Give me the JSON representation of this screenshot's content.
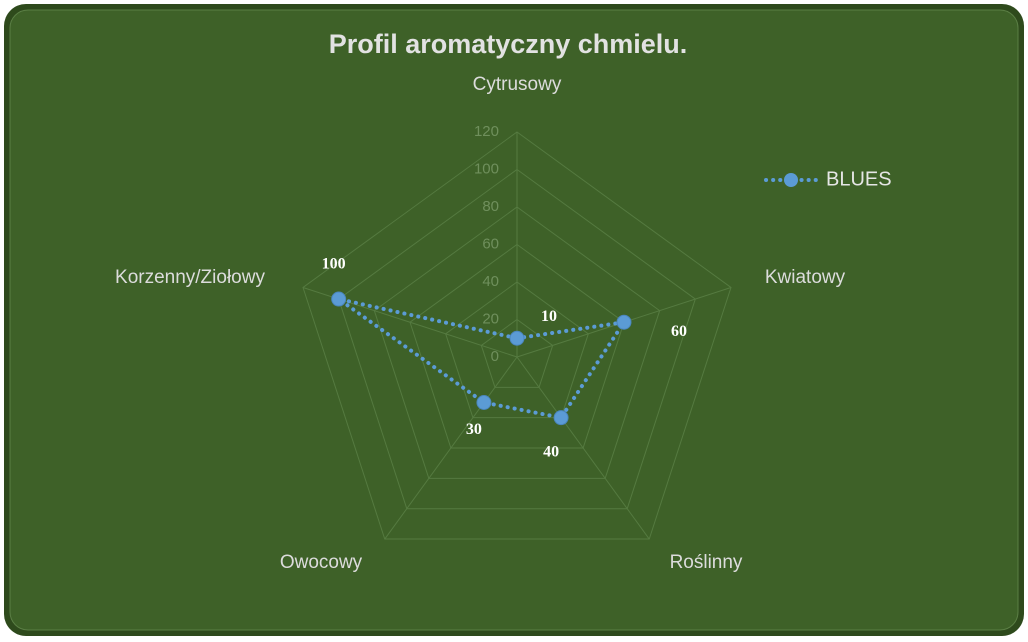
{
  "chart_data": {
    "type": "radar",
    "title": "Profil aromatyczny chmielu.",
    "categories": [
      "Cytrusowy",
      "Kwiatowy",
      "Roślinny",
      "Owocowy",
      "Korzenny/Ziołowy"
    ],
    "series": [
      {
        "name": "BLUES",
        "color": "#5b9bd5",
        "values": [
          10,
          60,
          40,
          30,
          100
        ]
      }
    ],
    "ylim": [
      0,
      120
    ],
    "yticks": [
      0,
      20,
      40,
      60,
      80,
      100,
      120
    ],
    "grid": true,
    "legend": "right"
  }
}
